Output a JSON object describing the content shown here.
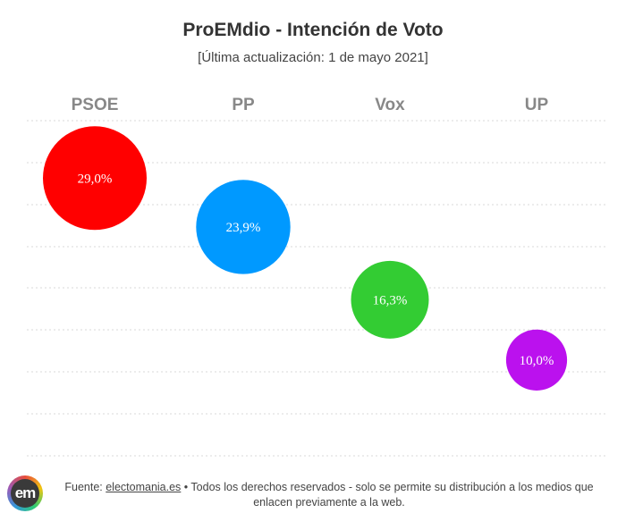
{
  "title": "ProEMdio - Intención de Voto",
  "subtitle": "[Última actualización: 1 de mayo 2021]",
  "chart_data": {
    "type": "scatter",
    "categories": [
      "PSOE",
      "PP",
      "Vox",
      "UP"
    ],
    "values": [
      29.0,
      23.9,
      16.3,
      10.0
    ],
    "value_labels": [
      "29,0%",
      "23,9%",
      "16,3%",
      "10,0%"
    ],
    "colors": [
      "#ff0000",
      "#0099ff",
      "#33cc33",
      "#bb11ee"
    ],
    "ylim": [
      0,
      35
    ],
    "grid": true
  },
  "footer": {
    "logo_text": "em",
    "source_prefix": "Fuente: ",
    "source_link": "electomania.es",
    "source_rest": " • Todos los derechos reservados - solo se permite su distribución a los medios que enlacen previamente a la web."
  }
}
